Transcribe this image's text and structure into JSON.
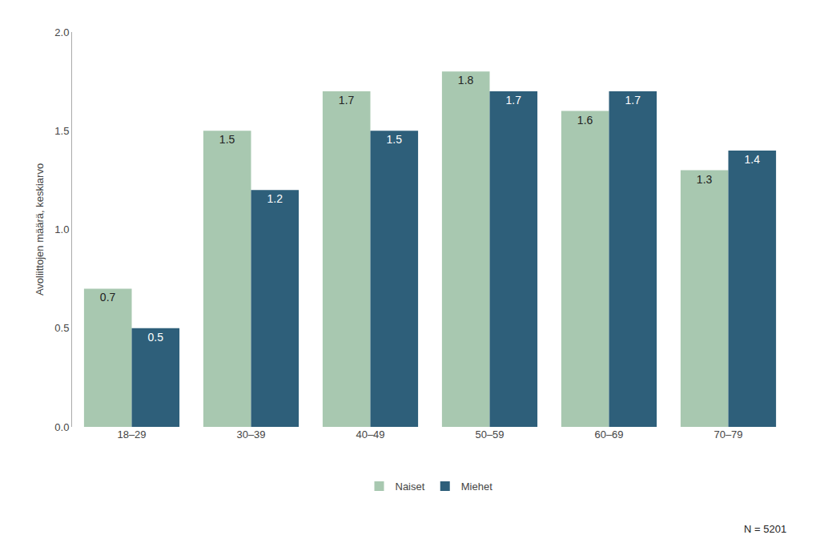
{
  "chart_data": {
    "type": "bar",
    "categories": [
      "18–29",
      "30–39",
      "40–49",
      "50–59",
      "60–69",
      "70–79"
    ],
    "series": [
      {
        "name": "Naiset",
        "color": "#a8c8b0",
        "values": [
          0.7,
          1.5,
          1.7,
          1.8,
          1.6,
          1.3
        ]
      },
      {
        "name": "Miehet",
        "color": "#2e5f7a",
        "values": [
          0.5,
          1.2,
          1.5,
          1.7,
          1.7,
          1.4
        ]
      }
    ],
    "ylabel": "Avoliittojen määrä, keskiarvo",
    "ylim": [
      0,
      2.0
    ],
    "yticks": [
      {
        "value": 0.0,
        "label": "0.0"
      },
      {
        "value": 0.5,
        "label": "0.5"
      },
      {
        "value": 1.0,
        "label": "1.0"
      },
      {
        "value": 1.5,
        "label": "1.5"
      },
      {
        "value": 2.0,
        "label": "2.0"
      }
    ],
    "annotation": "N = 5201",
    "data_labels": true,
    "grid": false,
    "legend": "bottom"
  }
}
